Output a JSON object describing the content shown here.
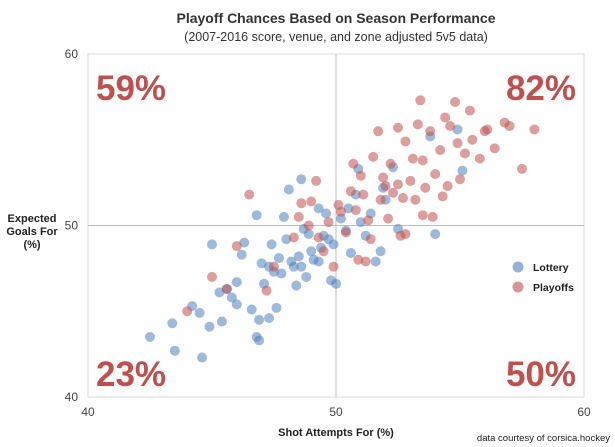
{
  "chart_data": {
    "type": "scatter",
    "title": "Playoff Chances Based on Season Performance",
    "subtitle": "(2007-2016 score, venue, and zone adjusted 5v5 data)",
    "xlabel": "Shot Attempts For (%)",
    "ylabel": [
      "Expected",
      "Goals For",
      "(%)"
    ],
    "xlim": [
      40,
      60
    ],
    "ylim": [
      40,
      60
    ],
    "xticks": [
      40,
      50,
      60
    ],
    "yticks": [
      40,
      50,
      60
    ],
    "reference_lines": {
      "x": 50,
      "y": 50
    },
    "grid": false,
    "legend_placement": "right",
    "quadrant_labels": {
      "top_left": "59%",
      "top_right": "82%",
      "bottom_left": "23%",
      "bottom_right": "50%"
    },
    "credit": "data courtesy of corsica.hockey",
    "series": [
      {
        "name": "Lottery",
        "color": "#4f81bd",
        "points": [
          [
            42.5,
            43.5
          ],
          [
            43.4,
            44.3
          ],
          [
            43.5,
            42.7
          ],
          [
            44.2,
            45.3
          ],
          [
            44.5,
            44.9
          ],
          [
            44.6,
            42.3
          ],
          [
            44.9,
            44.1
          ],
          [
            45.0,
            48.9
          ],
          [
            45.3,
            46.1
          ],
          [
            45.4,
            44.4
          ],
          [
            45.8,
            45.8
          ],
          [
            46.0,
            46.7
          ],
          [
            46.2,
            48.3
          ],
          [
            46.6,
            45.1
          ],
          [
            46.8,
            43.5
          ],
          [
            46.9,
            43.3
          ],
          [
            46.9,
            44.5
          ],
          [
            46.3,
            49.0
          ],
          [
            47.1,
            46.6
          ],
          [
            47.0,
            47.8
          ],
          [
            47.4,
            48.9
          ],
          [
            47.5,
            47.3
          ],
          [
            47.6,
            45.2
          ],
          [
            47.7,
            48.1
          ],
          [
            47.8,
            47.2
          ],
          [
            48.0,
            49.2
          ],
          [
            48.2,
            47.9
          ],
          [
            48.3,
            47.6
          ],
          [
            48.5,
            48.2
          ],
          [
            48.6,
            47.6
          ],
          [
            48.7,
            49.8
          ],
          [
            48.8,
            47.0
          ],
          [
            49.0,
            48.5
          ],
          [
            49.1,
            48.0
          ],
          [
            49.3,
            47.9
          ],
          [
            49.4,
            48.7
          ],
          [
            49.5,
            49.4
          ],
          [
            49.6,
            50.7
          ],
          [
            49.8,
            46.8
          ],
          [
            50.0,
            46.6
          ],
          [
            49.9,
            48.9
          ],
          [
            50.2,
            50.4
          ],
          [
            50.4,
            49.7
          ],
          [
            50.5,
            51.0
          ],
          [
            50.8,
            51.8
          ],
          [
            51.0,
            50.2
          ],
          [
            51.2,
            49.4
          ],
          [
            51.4,
            50.7
          ],
          [
            51.6,
            47.9
          ],
          [
            51.8,
            48.5
          ],
          [
            52.0,
            51.5
          ],
          [
            52.3,
            53.4
          ],
          [
            52.5,
            49.8
          ],
          [
            46.8,
            50.6
          ],
          [
            47.9,
            50.5
          ],
          [
            48.1,
            52.1
          ],
          [
            48.6,
            52.7
          ],
          [
            49.3,
            51.0
          ],
          [
            50.9,
            53.3
          ],
          [
            51.9,
            52.2
          ],
          [
            53.8,
            55.2
          ],
          [
            54.9,
            55.6
          ],
          [
            54.0,
            49.5
          ],
          [
            55.1,
            53.2
          ],
          [
            48.9,
            49.5
          ],
          [
            49.7,
            49.2
          ],
          [
            50.6,
            48.4
          ],
          [
            47.3,
            47.6
          ],
          [
            46.0,
            45.4
          ],
          [
            45.6,
            46.3
          ],
          [
            48.4,
            46.5
          ],
          [
            47.3,
            44.6
          ]
        ]
      },
      {
        "name": "Playoffs",
        "color": "#c0504d",
        "points": [
          [
            44.0,
            45.0
          ],
          [
            45.0,
            47.0
          ],
          [
            45.6,
            46.3
          ],
          [
            46.0,
            48.8
          ],
          [
            46.5,
            51.8
          ],
          [
            47.2,
            46.2
          ],
          [
            47.5,
            47.6
          ],
          [
            48.3,
            49.3
          ],
          [
            48.5,
            50.5
          ],
          [
            48.6,
            51.3
          ],
          [
            49.0,
            51.4
          ],
          [
            49.2,
            52.6
          ],
          [
            49.5,
            48.5
          ],
          [
            49.7,
            50.2
          ],
          [
            50.1,
            51.2
          ],
          [
            50.2,
            50.8
          ],
          [
            50.4,
            49.6
          ],
          [
            50.6,
            52.0
          ],
          [
            50.8,
            50.9
          ],
          [
            51.0,
            52.9
          ],
          [
            51.1,
            51.8
          ],
          [
            51.3,
            50.3
          ],
          [
            51.5,
            54.0
          ],
          [
            51.7,
            55.5
          ],
          [
            51.8,
            51.5
          ],
          [
            52.0,
            52.3
          ],
          [
            52.2,
            53.6
          ],
          [
            52.3,
            51.9
          ],
          [
            52.5,
            52.4
          ],
          [
            52.6,
            49.4
          ],
          [
            52.8,
            54.9
          ],
          [
            53.0,
            52.6
          ],
          [
            53.1,
            53.9
          ],
          [
            53.2,
            51.5
          ],
          [
            53.4,
            57.3
          ],
          [
            53.5,
            50.6
          ],
          [
            53.6,
            52.2
          ],
          [
            53.8,
            55.5
          ],
          [
            54.0,
            53.0
          ],
          [
            54.2,
            54.4
          ],
          [
            54.4,
            56.3
          ],
          [
            54.5,
            52.3
          ],
          [
            54.8,
            57.2
          ],
          [
            54.9,
            54.8
          ],
          [
            55.2,
            54.2
          ],
          [
            55.5,
            55.0
          ],
          [
            55.8,
            53.9
          ],
          [
            56.0,
            55.5
          ],
          [
            56.4,
            54.5
          ],
          [
            57.0,
            55.8
          ],
          [
            57.5,
            53.3
          ],
          [
            58.0,
            55.6
          ],
          [
            56.1,
            55.6
          ],
          [
            52.1,
            50.4
          ],
          [
            51.4,
            49.2
          ],
          [
            50.9,
            48.0
          ],
          [
            49.9,
            47.6
          ],
          [
            51.2,
            47.9
          ],
          [
            52.8,
            49.5
          ],
          [
            53.5,
            53.8
          ],
          [
            54.3,
            51.7
          ],
          [
            55.0,
            52.7
          ],
          [
            53.3,
            55.9
          ],
          [
            52.5,
            55.7
          ],
          [
            56.8,
            56.0
          ],
          [
            55.4,
            56.7
          ],
          [
            54.6,
            55.8
          ],
          [
            50.7,
            53.6
          ],
          [
            51.9,
            52.8
          ],
          [
            52.7,
            51.6
          ],
          [
            53.9,
            50.5
          ],
          [
            49.3,
            49.3
          ],
          [
            48.9,
            50.0
          ]
        ]
      }
    ]
  }
}
